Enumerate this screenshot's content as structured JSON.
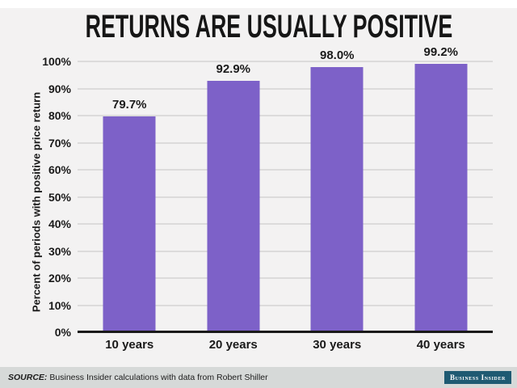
{
  "page": {
    "title": "RETURNS ARE USUALLY POSITIVE"
  },
  "chart_data": {
    "type": "bar",
    "title": "RETURNS ARE USUALLY POSITIVE",
    "categories": [
      "10 years",
      "20 years",
      "30 years",
      "40 years"
    ],
    "values": [
      79.7,
      92.9,
      98.0,
      99.2
    ],
    "value_labels": [
      "79.7%",
      "92.9%",
      "98.0%",
      "99.2%"
    ],
    "xlabel": "",
    "ylabel": "Percent of periods with positive price return",
    "ylim": [
      0,
      100
    ],
    "yticks": [
      0,
      10,
      20,
      30,
      40,
      50,
      60,
      70,
      80,
      90,
      100
    ],
    "ytick_labels": [
      "0%",
      "10%",
      "20%",
      "30%",
      "40%",
      "50%",
      "60%",
      "70%",
      "80%",
      "90%",
      "100%"
    ],
    "grid": true,
    "legend_position": "none",
    "bar_color": "#7d61c8",
    "gridline_color": "#dcdbdb",
    "axis_color": "#1a1a1a"
  },
  "footer": {
    "source_prefix": "SOURCE:",
    "source_text": "Business Insider calculations with data from Robert Shiller",
    "brand_label": "Business Insider",
    "brand_bg": "#1f5a72",
    "strip_bg": "#d6d9d8"
  }
}
